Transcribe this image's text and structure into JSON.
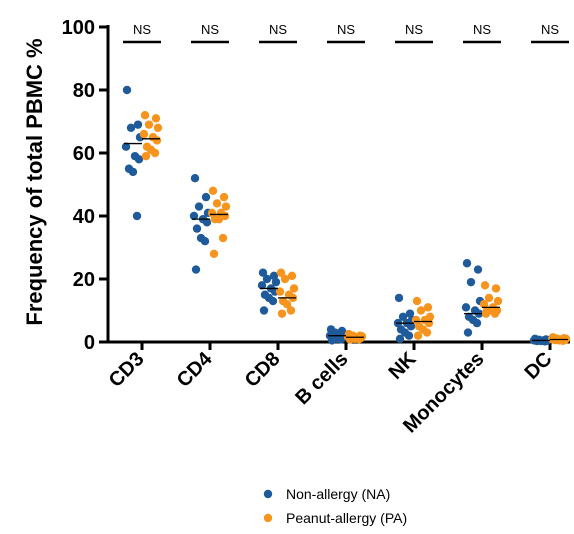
{
  "chart_data": {
    "type": "scatter",
    "ylabel": "Frequency of total PBMC %",
    "ylim": [
      0,
      100
    ],
    "yticks": [
      0,
      20,
      40,
      60,
      80,
      100
    ],
    "categories": [
      "CD3",
      "CD4",
      "CD8",
      "B cells",
      "NK",
      "Monocytes",
      "DC"
    ],
    "significance": [
      "NS",
      "NS",
      "NS",
      "NS",
      "NS",
      "NS",
      "NS"
    ],
    "grid": false,
    "legend_position": "bottom-center",
    "series": [
      {
        "name": "Non-allergy (NA)",
        "color": "#1f5b9a",
        "medians": [
          63,
          39,
          17,
          2,
          6,
          9,
          0.5
        ],
        "points": [
          [
            80,
            69,
            68,
            65,
            62,
            59,
            58,
            55,
            54,
            40
          ],
          [
            52,
            46,
            43,
            41,
            40,
            39,
            38,
            36,
            33,
            32,
            23
          ],
          [
            22,
            21,
            20,
            19,
            18,
            17,
            16,
            15,
            14,
            13,
            10
          ],
          [
            4,
            3.5,
            3,
            2.5,
            2,
            2,
            1.5,
            1,
            1,
            0.8,
            0.5
          ],
          [
            14,
            9,
            8,
            7,
            6,
            6,
            5,
            4,
            3,
            2,
            1
          ],
          [
            25,
            23,
            19,
            13,
            11,
            10,
            9,
            8,
            7,
            6,
            3
          ],
          [
            1,
            0.8,
            0.7,
            0.6,
            0.5,
            0.5,
            0.4,
            0.3,
            0.3,
            0.2
          ]
        ]
      },
      {
        "name": "Peanut-allergy (PA)",
        "color": "#f7941d",
        "medians": [
          64.5,
          40.5,
          14,
          1.5,
          6.5,
          11,
          0.8
        ],
        "points": [
          [
            72,
            71,
            69,
            68,
            66,
            65,
            64,
            62,
            61,
            60,
            59
          ],
          [
            48,
            46,
            44,
            43,
            41,
            41,
            40,
            39,
            39,
            33,
            28
          ],
          [
            22,
            21,
            20,
            17,
            16,
            15,
            14,
            13,
            12,
            10,
            9
          ],
          [
            2.5,
            2,
            2,
            1.8,
            1.6,
            1.5,
            1.3,
            1.2,
            1,
            0.9,
            0.8
          ],
          [
            13,
            11,
            10,
            8,
            7,
            7,
            6,
            5,
            4,
            3,
            2
          ],
          [
            18,
            17,
            14,
            13,
            12,
            11,
            10,
            10,
            10,
            9,
            9
          ],
          [
            1.5,
            1.2,
            1.1,
            1,
            0.9,
            0.8,
            0.7,
            0.6,
            0.5,
            0.4
          ]
        ]
      }
    ]
  }
}
